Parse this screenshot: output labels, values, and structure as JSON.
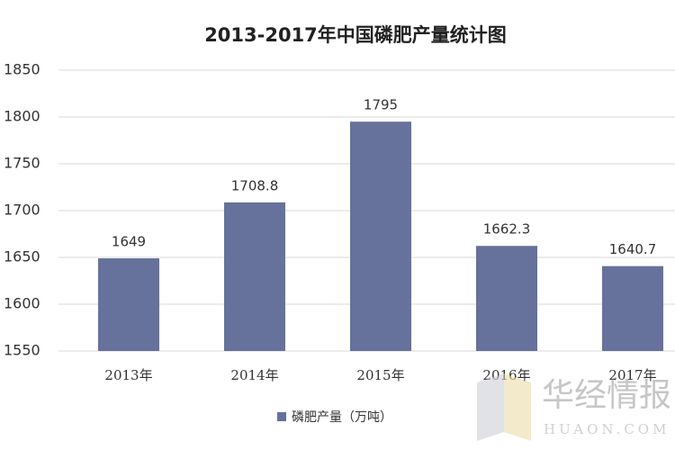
{
  "chart_data": {
    "type": "bar",
    "title": "2013-2017年中国磷肥产量统计图",
    "categories": [
      "2013年",
      "2014年",
      "2015年",
      "2016年",
      "2017年"
    ],
    "series": [
      {
        "name": "磷肥产量（万吨）",
        "color": "#66729b",
        "values": [
          1649,
          1708.8,
          1795,
          1662.3,
          1640.7
        ]
      }
    ],
    "ylim": [
      1550,
      1850
    ],
    "yticks": [
      1550,
      1600,
      1650,
      1700,
      1750,
      1800,
      1850
    ],
    "grid": true,
    "legend": "bottom",
    "watermark": {
      "text": "华经情报",
      "subtext": "HUAON.COM"
    }
  }
}
